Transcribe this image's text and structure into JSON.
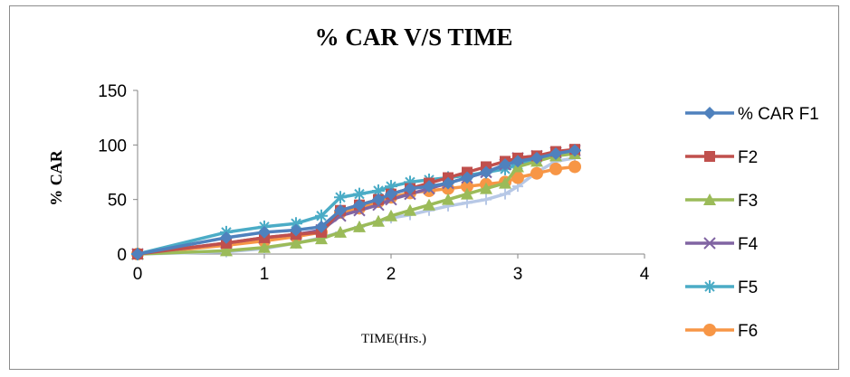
{
  "chart_data": {
    "type": "line",
    "title": "% CAR V/S TIME",
    "xlabel": "TIME(Hrs.)",
    "ylabel": "% CAR",
    "xlim": [
      0,
      4
    ],
    "ylim": [
      0,
      150
    ],
    "xticks": [
      "0",
      "1",
      "2",
      "3",
      "4"
    ],
    "yticks": [
      "0",
      "50",
      "100",
      "150"
    ],
    "grid": false,
    "legend_position": "right",
    "series": [
      {
        "name": "% CAR F1",
        "color": "#4f81bd",
        "marker": "diamond",
        "points": [
          [
            0,
            0
          ],
          [
            0.7,
            15
          ],
          [
            1,
            20
          ],
          [
            1.25,
            22
          ],
          [
            1.45,
            25
          ],
          [
            1.6,
            40
          ],
          [
            1.75,
            45
          ],
          [
            1.9,
            50
          ],
          [
            2,
            55
          ],
          [
            2.15,
            60
          ],
          [
            2.3,
            62
          ],
          [
            2.45,
            65
          ],
          [
            2.6,
            70
          ],
          [
            2.75,
            75
          ],
          [
            2.9,
            82
          ],
          [
            3,
            85
          ],
          [
            3.15,
            88
          ],
          [
            3.3,
            92
          ],
          [
            3.45,
            95
          ]
        ]
      },
      {
        "name": "F2",
        "color": "#c0504d",
        "marker": "square",
        "points": [
          [
            0,
            0
          ],
          [
            0.7,
            10
          ],
          [
            1,
            15
          ],
          [
            1.25,
            18
          ],
          [
            1.45,
            20
          ],
          [
            1.6,
            40
          ],
          [
            1.75,
            45
          ],
          [
            1.9,
            50
          ],
          [
            2,
            55
          ],
          [
            2.15,
            60
          ],
          [
            2.3,
            65
          ],
          [
            2.45,
            70
          ],
          [
            2.6,
            75
          ],
          [
            2.75,
            80
          ],
          [
            2.9,
            85
          ],
          [
            3,
            88
          ],
          [
            3.15,
            90
          ],
          [
            3.3,
            94
          ],
          [
            3.45,
            96
          ]
        ]
      },
      {
        "name": "F3",
        "color": "#9bbb59",
        "marker": "triangle",
        "points": [
          [
            0,
            0
          ],
          [
            0.7,
            3
          ],
          [
            1,
            6
          ],
          [
            1.25,
            10
          ],
          [
            1.45,
            14
          ],
          [
            1.6,
            20
          ],
          [
            1.75,
            25
          ],
          [
            1.9,
            30
          ],
          [
            2,
            35
          ],
          [
            2.15,
            40
          ],
          [
            2.3,
            45
          ],
          [
            2.45,
            50
          ],
          [
            2.6,
            55
          ],
          [
            2.75,
            60
          ],
          [
            2.9,
            65
          ],
          [
            3,
            80
          ],
          [
            3.15,
            85
          ],
          [
            3.3,
            90
          ],
          [
            3.45,
            92
          ]
        ]
      },
      {
        "name": "F4",
        "color": "#8064a2",
        "marker": "x",
        "points": [
          [
            0,
            0
          ],
          [
            0.7,
            10
          ],
          [
            1,
            15
          ],
          [
            1.25,
            18
          ],
          [
            1.45,
            22
          ],
          [
            1.6,
            35
          ],
          [
            1.75,
            40
          ],
          [
            1.9,
            45
          ],
          [
            2,
            50
          ],
          [
            2.15,
            55
          ],
          [
            2.3,
            60
          ],
          [
            2.45,
            65
          ],
          [
            2.6,
            70
          ],
          [
            2.75,
            75
          ],
          [
            2.9,
            82
          ],
          [
            3,
            88
          ],
          [
            3.15,
            90
          ],
          [
            3.3,
            93
          ],
          [
            3.45,
            95
          ]
        ]
      },
      {
        "name": "F5",
        "color": "#4bacc6",
        "marker": "asterisk",
        "points": [
          [
            0,
            0
          ],
          [
            0.7,
            20
          ],
          [
            1,
            25
          ],
          [
            1.25,
            28
          ],
          [
            1.45,
            35
          ],
          [
            1.6,
            52
          ],
          [
            1.75,
            55
          ],
          [
            1.9,
            58
          ],
          [
            2,
            62
          ],
          [
            2.15,
            66
          ],
          [
            2.3,
            68
          ],
          [
            2.45,
            70
          ],
          [
            2.6,
            72
          ],
          [
            2.75,
            75
          ],
          [
            2.9,
            78
          ],
          [
            3,
            82
          ],
          [
            3.15,
            88
          ],
          [
            3.3,
            92
          ],
          [
            3.45,
            95
          ]
        ]
      },
      {
        "name": "F6",
        "color": "#f79646",
        "marker": "circle",
        "points": [
          [
            0,
            0
          ],
          [
            0.7,
            8
          ],
          [
            1,
            12
          ],
          [
            1.25,
            16
          ],
          [
            1.45,
            20
          ],
          [
            1.6,
            38
          ],
          [
            1.75,
            42
          ],
          [
            1.9,
            48
          ],
          [
            2,
            52
          ],
          [
            2.15,
            56
          ],
          [
            2.3,
            58
          ],
          [
            2.45,
            60
          ],
          [
            2.6,
            62
          ],
          [
            2.75,
            64
          ],
          [
            2.9,
            66
          ],
          [
            3,
            70
          ],
          [
            3.15,
            74
          ],
          [
            3.3,
            78
          ],
          [
            3.45,
            80
          ]
        ]
      },
      {
        "name": "",
        "color": "#b7c8e6",
        "marker": "plus",
        "points": [
          [
            0,
            0
          ],
          [
            0.7,
            2
          ],
          [
            1,
            5
          ],
          [
            1.25,
            10
          ],
          [
            1.45,
            15
          ],
          [
            1.6,
            20
          ],
          [
            1.75,
            25
          ],
          [
            1.9,
            30
          ],
          [
            2,
            33
          ],
          [
            2.15,
            36
          ],
          [
            2.3,
            40
          ],
          [
            2.45,
            44
          ],
          [
            2.6,
            47
          ],
          [
            2.75,
            50
          ],
          [
            2.9,
            55
          ],
          [
            3,
            62
          ],
          [
            3.15,
            75
          ],
          [
            3.3,
            85
          ],
          [
            3.45,
            88
          ]
        ]
      }
    ]
  }
}
